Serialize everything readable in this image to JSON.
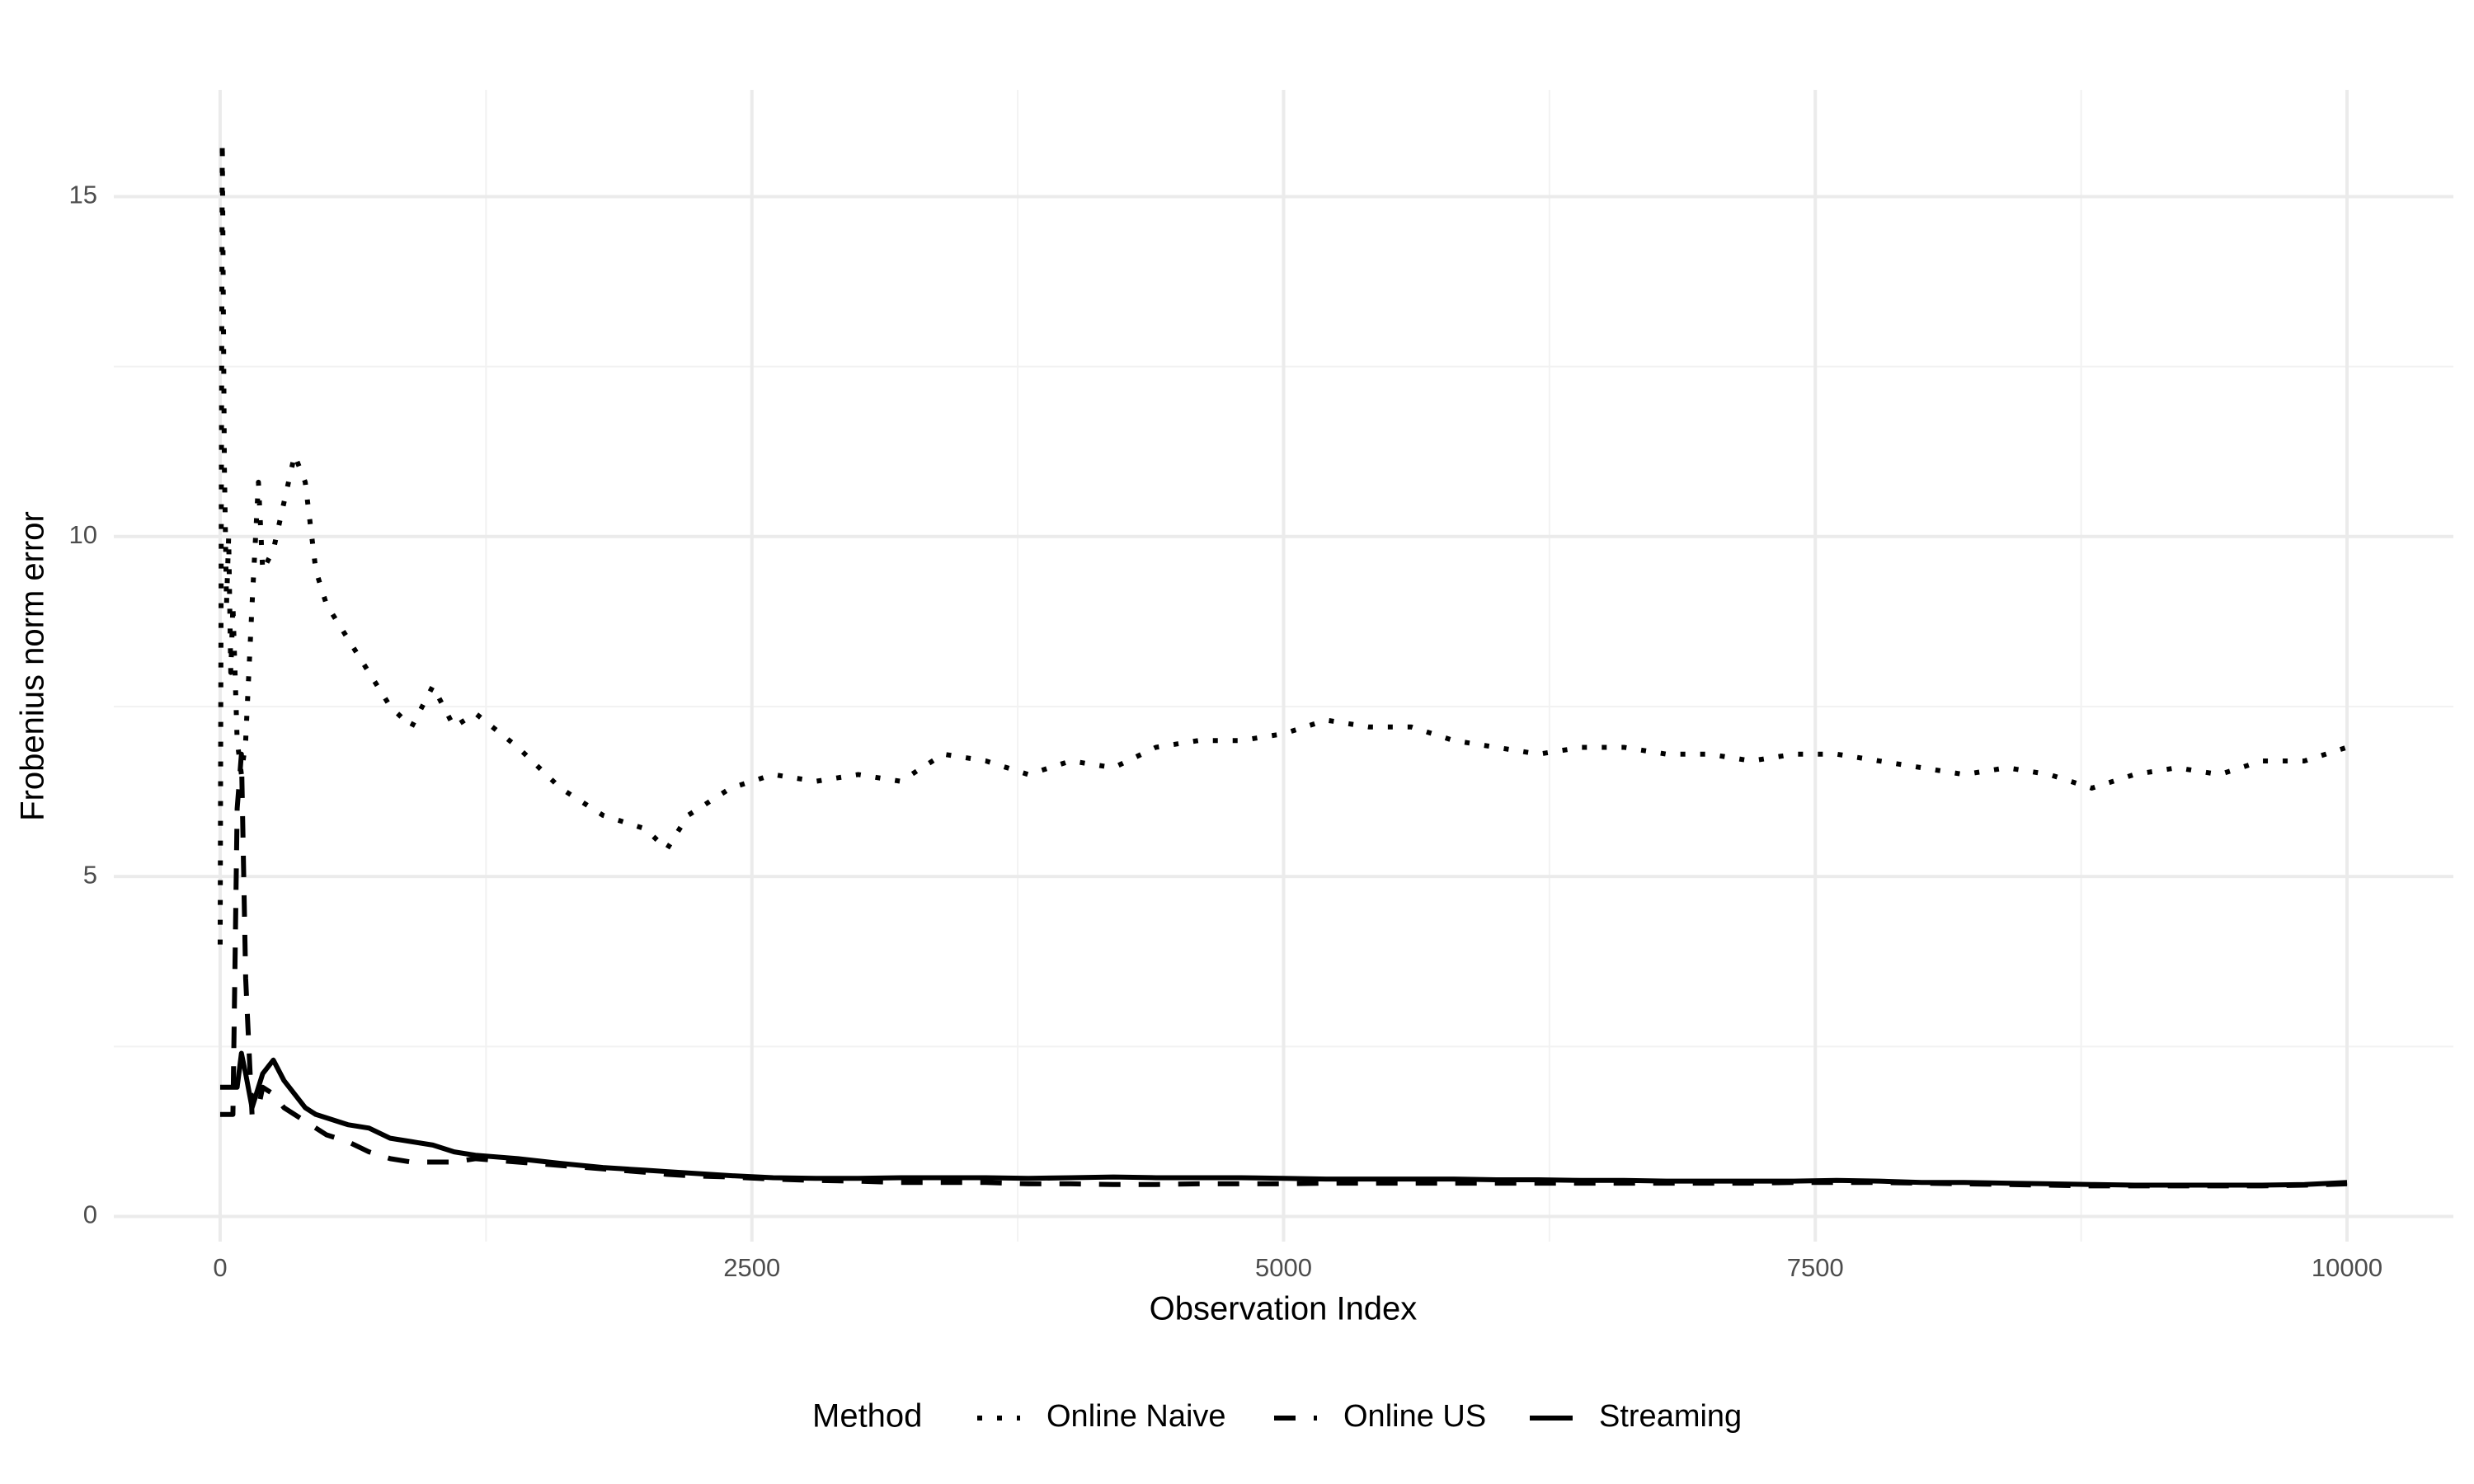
{
  "chart_data": {
    "type": "line",
    "x_label": "Observation Index",
    "y_label": "Frobenius norm error",
    "legend_title": "Method",
    "legend_position": "bottom",
    "grid": true,
    "xlim": [
      -500,
      10500
    ],
    "ylim": [
      -0.37,
      16.57
    ],
    "xticks": [
      0,
      2500,
      5000,
      7500,
      10000
    ],
    "yticks": [
      0,
      5,
      10,
      15
    ],
    "minor_xticks": [
      1250,
      3750,
      6250,
      8750
    ],
    "minor_yticks": [
      2.5,
      7.5,
      12.5
    ],
    "x": [
      0,
      10,
      20,
      30,
      40,
      50,
      60,
      80,
      100,
      120,
      150,
      180,
      200,
      250,
      300,
      350,
      400,
      450,
      500,
      600,
      700,
      800,
      900,
      1000,
      1100,
      1200,
      1400,
      1600,
      1800,
      2000,
      2100,
      2200,
      2400,
      2600,
      2800,
      3000,
      3200,
      3400,
      3600,
      3800,
      4000,
      4200,
      4400,
      4600,
      4800,
      5000,
      5200,
      5400,
      5600,
      5800,
      6000,
      6200,
      6400,
      6600,
      6800,
      7000,
      7200,
      7400,
      7600,
      7800,
      8000,
      8200,
      8400,
      8600,
      8800,
      9000,
      9200,
      9400,
      9600,
      9800,
      10000
    ],
    "series": [
      {
        "name": "Online Naive",
        "color": "#000000",
        "linetype": "dotted",
        "values": [
          4,
          15.8,
          11,
          9,
          10,
          8,
          9,
          7,
          6.5,
          7,
          9,
          10.8,
          9.5,
          9.8,
          10.5,
          11.2,
          10.8,
          9.5,
          9,
          8.5,
          8,
          7.5,
          7.2,
          7.8,
          7.2,
          7.4,
          6.9,
          6.3,
          5.9,
          5.7,
          5.4,
          5.9,
          6.3,
          6.5,
          6.4,
          6.5,
          6.4,
          6.8,
          6.7,
          6.5,
          6.7,
          6.6,
          6.9,
          7.0,
          7.0,
          7.1,
          7.3,
          7.2,
          7.2,
          7.0,
          6.9,
          6.8,
          6.9,
          6.9,
          6.8,
          6.8,
          6.7,
          6.8,
          6.8,
          6.7,
          6.6,
          6.5,
          6.6,
          6.5,
          6.3,
          6.5,
          6.6,
          6.5,
          6.7,
          6.7,
          6.9
        ]
      },
      {
        "name": "Online US",
        "color": "#000000",
        "linetype": "dashed",
        "values": [
          1.5,
          1.5,
          1.5,
          1.5,
          1.5,
          1.5,
          1.5,
          6,
          6.8,
          3.5,
          1.5,
          1.6,
          1.9,
          1.8,
          1.6,
          1.5,
          1.4,
          1.3,
          1.2,
          1.1,
          0.95,
          0.85,
          0.8,
          0.8,
          0.8,
          0.85,
          0.8,
          0.75,
          0.7,
          0.65,
          0.62,
          0.6,
          0.58,
          0.55,
          0.53,
          0.52,
          0.5,
          0.5,
          0.5,
          0.48,
          0.48,
          0.47,
          0.47,
          0.48,
          0.48,
          0.48,
          0.49,
          0.49,
          0.49,
          0.49,
          0.49,
          0.49,
          0.49,
          0.49,
          0.49,
          0.49,
          0.49,
          0.5,
          0.5,
          0.5,
          0.49,
          0.48,
          0.47,
          0.46,
          0.45,
          0.45,
          0.45,
          0.45,
          0.45,
          0.46,
          0.48
        ]
      },
      {
        "name": "Streaming",
        "color": "#000000",
        "linetype": "solid",
        "values": [
          1.9,
          1.9,
          1.9,
          1.9,
          1.9,
          1.9,
          1.9,
          1.9,
          2.4,
          2.1,
          1.6,
          1.9,
          2.1,
          2.3,
          2.0,
          1.8,
          1.6,
          1.5,
          1.45,
          1.35,
          1.3,
          1.15,
          1.1,
          1.05,
          0.95,
          0.9,
          0.85,
          0.78,
          0.72,
          0.68,
          0.66,
          0.64,
          0.6,
          0.57,
          0.56,
          0.56,
          0.57,
          0.57,
          0.57,
          0.56,
          0.57,
          0.58,
          0.57,
          0.57,
          0.57,
          0.56,
          0.55,
          0.55,
          0.55,
          0.55,
          0.54,
          0.54,
          0.53,
          0.53,
          0.52,
          0.52,
          0.52,
          0.52,
          0.53,
          0.52,
          0.5,
          0.5,
          0.49,
          0.48,
          0.47,
          0.46,
          0.46,
          0.46,
          0.46,
          0.47,
          0.5
        ]
      }
    ]
  }
}
